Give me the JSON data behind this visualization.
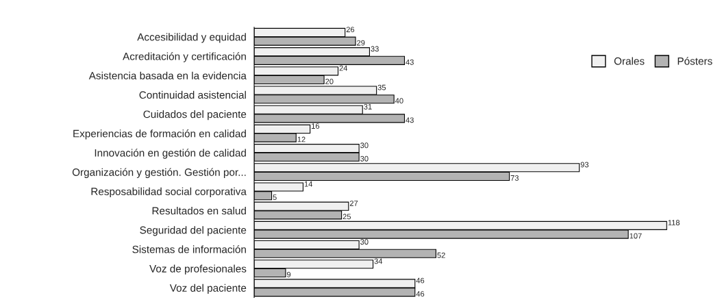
{
  "chart_data": {
    "type": "bar",
    "orientation": "horizontal",
    "data_labels": true,
    "legend": "top right",
    "grid": false,
    "categories": [
      "Accesibilidad y equidad",
      "Acreditación y certificación",
      "Asistencia basada en la evidencia",
      "Continuidad asistencial",
      "Cuidados del paciente",
      "Experiencias de formación en calidad",
      "Innovación en gestión de calidad",
      "Organización y gestión. Gestión por...",
      "Resposabilidad social corporativa",
      "Resultados en salud",
      "Seguridad del paciente",
      "Sistemas de información",
      "Voz de profesionales",
      "Voz del paciente"
    ],
    "series": [
      {
        "name": "Orales",
        "color": "#f0f0f0",
        "values": [
          26,
          33,
          24,
          35,
          31,
          16,
          30,
          93,
          14,
          27,
          118,
          30,
          34,
          46
        ]
      },
      {
        "name": "Pósters",
        "color": "#b3b3b3",
        "values": [
          29,
          43,
          20,
          40,
          43,
          12,
          30,
          73,
          5,
          25,
          107,
          52,
          9,
          46
        ]
      }
    ]
  }
}
